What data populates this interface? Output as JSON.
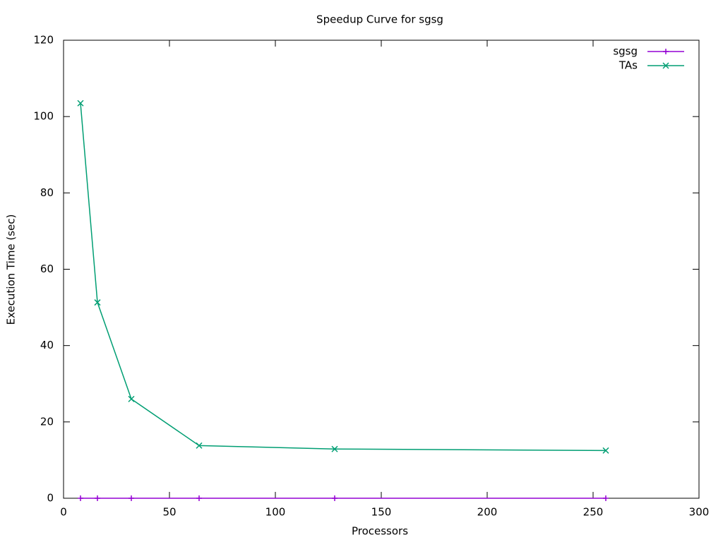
{
  "chart_data": {
    "type": "line",
    "title": "Speedup Curve for sgsg",
    "x_label": "Processors",
    "y_label": "Execution Time (sec)",
    "x": [
      8,
      16,
      32,
      64,
      128,
      256
    ],
    "series": [
      {
        "name": "sgsg",
        "color": "#9400d3",
        "marker": "plus",
        "values": [
          0,
          0,
          0,
          0,
          0,
          0
        ]
      },
      {
        "name": "TAs",
        "color": "#009e73",
        "marker": "cross",
        "values": [
          103.5,
          51.3,
          26,
          13.8,
          12.9,
          12.5
        ]
      }
    ],
    "xlim": [
      0,
      300
    ],
    "xticks": [
      0,
      50,
      100,
      150,
      200,
      250,
      300
    ],
    "ylim": [
      0,
      120
    ],
    "yticks": [
      0,
      20,
      40,
      60,
      80,
      100,
      120
    ],
    "legend": "top-right"
  }
}
